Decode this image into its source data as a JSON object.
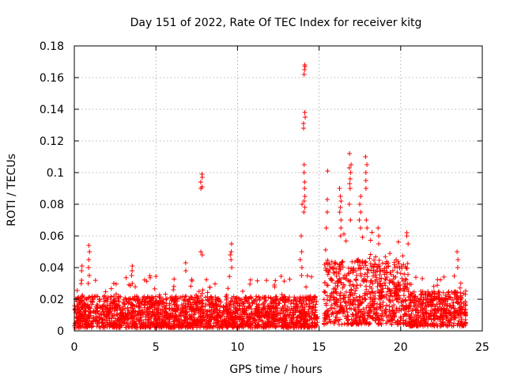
{
  "chart_data": {
    "type": "scatter",
    "title": "Day 151 of 2022, Rate Of TEC Index for receiver kitg",
    "xlabel": "GPS time / hours",
    "ylabel": "ROTI / TECUs",
    "xlim": [
      0,
      25
    ],
    "ylim": [
      0,
      0.18
    ],
    "xticks": [
      0,
      5,
      10,
      15,
      20,
      25
    ],
    "yticks": [
      0,
      0.02,
      0.04,
      0.06,
      0.08,
      0.1,
      0.12,
      0.14,
      0.16,
      0.18
    ],
    "xtick_labels": [
      "0",
      "5",
      "10",
      "15",
      "20",
      "25"
    ],
    "ytick_labels": [
      "0",
      "0.02",
      "0.04",
      "0.06",
      "0.08",
      "0.1",
      "0.12",
      "0.14",
      "0.16",
      "0.18"
    ],
    "grid": true,
    "marker": "+",
    "color": "#ff0000",
    "series": [
      {
        "name": "ROTI",
        "segments": [
          {
            "x_start": 0.0,
            "x_end": 14.9,
            "y_min": 0.002,
            "y_typical_max": 0.022,
            "y_occasional_max": 0.035
          },
          {
            "x_start": 15.3,
            "x_end": 20.5,
            "y_min": 0.004,
            "y_typical_max": 0.045,
            "y_occasional_max": 0.065
          },
          {
            "x_start": 20.5,
            "x_end": 24.0,
            "y_min": 0.003,
            "y_typical_max": 0.025,
            "y_occasional_max": 0.035
          }
        ],
        "highlights": [
          {
            "x": 0.9,
            "y": [
              0.03,
              0.035,
              0.04,
              0.045,
              0.05,
              0.054
            ]
          },
          {
            "x": 0.5,
            "y": [
              0.032,
              0.038,
              0.041
            ]
          },
          {
            "x": 3.5,
            "y": [
              0.03,
              0.035,
              0.038,
              0.041
            ]
          },
          {
            "x": 6.8,
            "y": [
              0.038,
              0.043
            ]
          },
          {
            "x": 7.8,
            "y": [
              0.048,
              0.05,
              0.09,
              0.091,
              0.094,
              0.097,
              0.099
            ]
          },
          {
            "x": 9.6,
            "y": [
              0.04,
              0.045,
              0.048,
              0.05,
              0.055
            ]
          },
          {
            "x": 13.9,
            "y": [
              0.035,
              0.04,
              0.045,
              0.05,
              0.06,
              0.08
            ]
          },
          {
            "x": 14.1,
            "y": [
              0.075,
              0.078,
              0.082,
              0.085,
              0.09,
              0.094,
              0.1,
              0.105,
              0.128,
              0.131,
              0.135,
              0.138,
              0.162,
              0.165,
              0.167,
              0.168
            ]
          },
          {
            "x": 15.5,
            "y": [
              0.065,
              0.075,
              0.083,
              0.101
            ]
          },
          {
            "x": 16.3,
            "y": [
              0.06,
              0.065,
              0.07,
              0.075,
              0.078,
              0.082,
              0.085,
              0.09
            ]
          },
          {
            "x": 16.9,
            "y": [
              0.07,
              0.08,
              0.09,
              0.093,
              0.096,
              0.1,
              0.103,
              0.105,
              0.112
            ]
          },
          {
            "x": 17.5,
            "y": [
              0.065,
              0.07,
              0.075,
              0.08,
              0.085
            ]
          },
          {
            "x": 17.9,
            "y": [
              0.065,
              0.07,
              0.09,
              0.095,
              0.1,
              0.105,
              0.11
            ]
          },
          {
            "x": 18.6,
            "y": [
              0.055,
              0.06,
              0.065
            ]
          },
          {
            "x": 20.4,
            "y": [
              0.055,
              0.06,
              0.062
            ]
          },
          {
            "x": 23.5,
            "y": [
              0.04,
              0.045,
              0.05
            ]
          }
        ]
      }
    ]
  }
}
